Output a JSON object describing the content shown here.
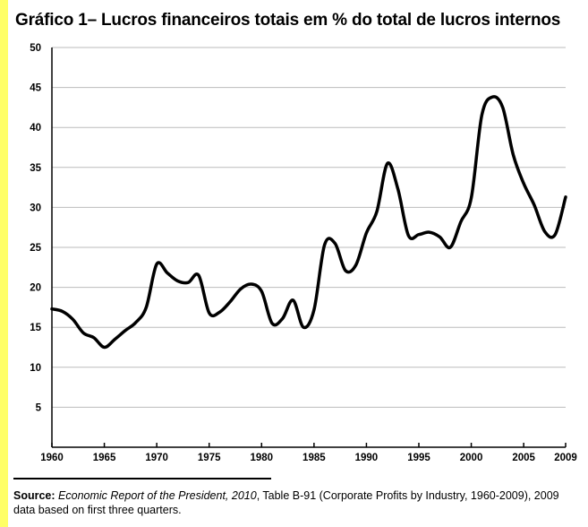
{
  "title": "Gráfico 1– Lucros financeiros totais em % do total de lucros internos",
  "source": {
    "label": "Source:",
    "italic": "Economic Report of the President, 2010",
    "text": ", Table B-91 (Corporate Profits by Industry, 1960-2009), 2009 data based on first three quarters."
  },
  "colors": {
    "accent_band": "#ffff66",
    "line": "#000000",
    "grid": "#bbbbbb"
  },
  "chart_data": {
    "type": "line",
    "title": "Gráfico 1– Lucros financeiros totais em % do total de lucros internos",
    "xlabel": "",
    "ylabel": "",
    "xlim": [
      1960,
      2009
    ],
    "ylim": [
      0,
      50
    ],
    "grid": true,
    "legend": "none",
    "x_ticks": [
      "1960",
      "1965",
      "1970",
      "1975",
      "1980",
      "1985",
      "1990",
      "1995",
      "2000",
      "2005",
      "2009"
    ],
    "x_tick_values": [
      1960,
      1965,
      1970,
      1975,
      1980,
      1985,
      1990,
      1995,
      2000,
      2005,
      2009
    ],
    "y_ticks": [
      "5",
      "10",
      "15",
      "20",
      "25",
      "30",
      "35",
      "40",
      "45",
      "50"
    ],
    "y_tick_values": [
      5,
      10,
      15,
      20,
      25,
      30,
      35,
      40,
      45,
      50
    ],
    "series": [
      {
        "values": [
          [
            1960,
            17.3
          ],
          [
            1961,
            17.0
          ],
          [
            1962,
            16.0
          ],
          [
            1963,
            14.3
          ],
          [
            1964,
            13.7
          ],
          [
            1965,
            12.5
          ],
          [
            1966,
            13.5
          ],
          [
            1967,
            14.6
          ],
          [
            1968,
            15.6
          ],
          [
            1969,
            17.5
          ],
          [
            1970,
            22.9
          ],
          [
            1971,
            21.8
          ],
          [
            1972,
            20.8
          ],
          [
            1973,
            20.6
          ],
          [
            1974,
            21.5
          ],
          [
            1975,
            16.8
          ],
          [
            1976,
            16.9
          ],
          [
            1977,
            18.2
          ],
          [
            1978,
            19.8
          ],
          [
            1979,
            20.4
          ],
          [
            1980,
            19.5
          ],
          [
            1981,
            15.5
          ],
          [
            1982,
            16.1
          ],
          [
            1983,
            18.4
          ],
          [
            1984,
            15.0
          ],
          [
            1985,
            17.2
          ],
          [
            1986,
            25.3
          ],
          [
            1987,
            25.5
          ],
          [
            1988,
            22.1
          ],
          [
            1989,
            22.8
          ],
          [
            1990,
            26.8
          ],
          [
            1991,
            29.5
          ],
          [
            1992,
            35.5
          ],
          [
            1993,
            32.3
          ],
          [
            1994,
            26.5
          ],
          [
            1995,
            26.6
          ],
          [
            1996,
            26.9
          ],
          [
            1997,
            26.3
          ],
          [
            1998,
            25.0
          ],
          [
            1999,
            28.2
          ],
          [
            2000,
            31.2
          ],
          [
            2001,
            41.5
          ],
          [
            2002,
            43.8
          ],
          [
            2003,
            42.5
          ],
          [
            2004,
            36.6
          ],
          [
            2005,
            33.0
          ],
          [
            2006,
            30.3
          ],
          [
            2007,
            27.0
          ],
          [
            2008,
            26.6
          ],
          [
            2009,
            31.3
          ]
        ]
      }
    ]
  }
}
